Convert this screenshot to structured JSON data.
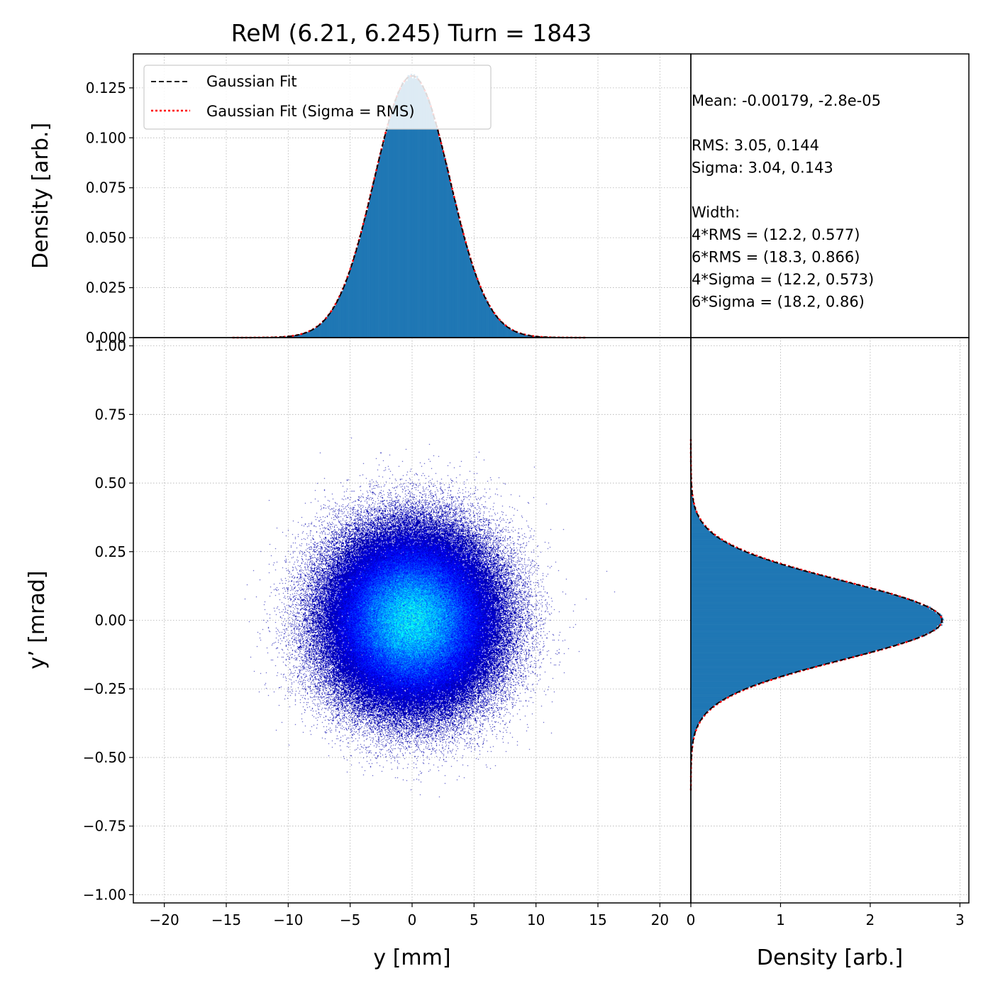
{
  "title": "ReM (6.21, 6.245) Turn = 1843",
  "stats_lines": [
    "Mean: -0.00179, -2.8e-05",
    "",
    "RMS: 3.05, 0.144",
    "Sigma: 3.04, 0.143",
    "",
    "Width:",
    "4*RMS = (12.2, 0.577)",
    "6*RMS = (18.3, 0.866)",
    "4*Sigma = (12.2, 0.573)",
    "6*Sigma = (18.2, 0.86)"
  ],
  "legend": {
    "fit_label": "Gaussian Fit",
    "fit_rms_label": "Gaussian Fit (Sigma = RMS)"
  },
  "colors": {
    "histogram": "#1f77b4",
    "fit": "#000000",
    "fit_rms": "#ff0000",
    "scatter_colormap": "jet"
  },
  "chart_data": [
    {
      "type": "area",
      "panel": "top-histogram",
      "ylabel": "Density [arb.]",
      "ylim": [
        0,
        0.142
      ],
      "yticks": [
        "0.000",
        "0.025",
        "0.050",
        "0.075",
        "0.100",
        "0.125"
      ],
      "xlim": [
        -22.5,
        22.5
      ],
      "grid": true,
      "legend_position": "top-left",
      "distribution": {
        "mean": -0.00179,
        "sigma": 3.04,
        "peak": 0.131,
        "x_range": [
          -14.5,
          14
        ]
      },
      "series": [
        {
          "name": "Gaussian Fit",
          "mean": -0.00179,
          "sigma": 3.04
        },
        {
          "name": "Gaussian Fit (Sigma = RMS)",
          "mean": -0.00179,
          "sigma": 3.05
        }
      ]
    },
    {
      "type": "heatmap",
      "panel": "phase-space",
      "xlabel": "y [mm]",
      "ylabel": "y’ [mrad]",
      "xlim": [
        -22.5,
        22.5
      ],
      "ylim": [
        -1.03,
        1.03
      ],
      "xticks": [
        "−20",
        "−15",
        "−10",
        "−5",
        "0",
        "5",
        "10",
        "15",
        "20"
      ],
      "yticks": [
        "−1.00",
        "−0.75",
        "−0.50",
        "−0.25",
        "0.00",
        "0.25",
        "0.50",
        "0.75",
        "1.00"
      ],
      "grid": true,
      "distribution": {
        "mean_x": -0.00179,
        "sigma_x": 3.05,
        "mean_y": -2.8e-05,
        "sigma_y": 0.144
      }
    },
    {
      "type": "area",
      "panel": "right-histogram",
      "orientation": "horizontal",
      "xlabel": "Density [arb.]",
      "xlim": [
        0,
        3.1
      ],
      "xticks": [
        "0",
        "1",
        "2",
        "3"
      ],
      "ylim": [
        -1.03,
        1.03
      ],
      "grid": true,
      "distribution": {
        "mean": -2.8e-05,
        "sigma": 0.143,
        "peak": 2.8,
        "y_range": [
          -0.62,
          0.66
        ]
      },
      "series": [
        {
          "name": "Gaussian Fit",
          "mean": -2.8e-05,
          "sigma": 0.143
        },
        {
          "name": "Gaussian Fit (Sigma = RMS)",
          "mean": -2.8e-05,
          "sigma": 0.144
        }
      ]
    }
  ]
}
